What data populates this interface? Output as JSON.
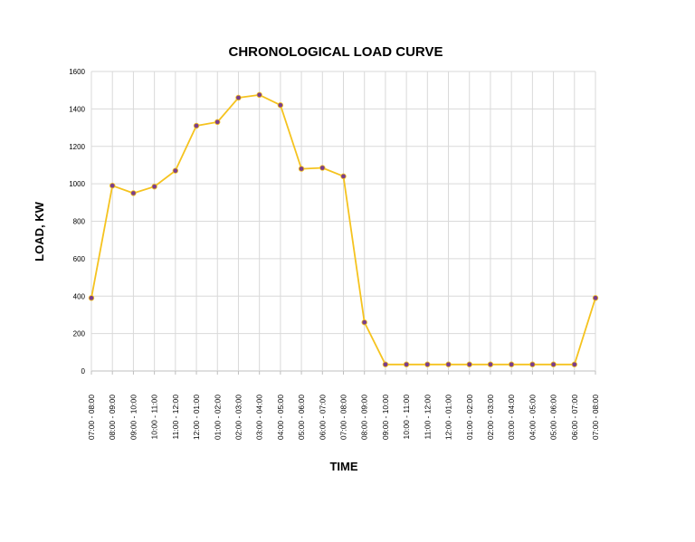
{
  "chart_data": {
    "type": "line",
    "title": "CHRONOLOGICAL LOAD CURVE",
    "xlabel": "TIME",
    "ylabel": "LOAD, KW",
    "ylim": [
      0,
      1600
    ],
    "yticks": [
      "0",
      "200",
      "400",
      "600",
      "800",
      "1000",
      "1200",
      "1400",
      "1600"
    ],
    "grid": true,
    "categories": [
      "07:00 - 08:00",
      "08:00 - 09:00",
      "09:00 - 10:00",
      "10:00 - 11:00",
      "11:00 - 12:00",
      "12:00 - 01:00",
      "01:00 - 02:00",
      "02:00 - 03:00",
      "03:00 - 04:00",
      "04:00 - 05:00",
      "05:00 - 06:00",
      "06:00 - 07:00",
      "07:00 - 08:00",
      "08:00 - 09:00",
      "09:00 - 10:00",
      "10:00 - 11:00",
      "11:00 - 12:00",
      "12:00 - 01:00",
      "01:00 - 02:00",
      "02:00 - 03:00",
      "03:00 - 04:00",
      "04:00 - 05:00",
      "05:00 - 06:00",
      "06:00 - 07:00",
      "07:00 - 08:00"
    ],
    "series": [
      {
        "values": [
          390,
          990,
          950,
          985,
          1070,
          1310,
          1330,
          1460,
          1475,
          1420,
          1080,
          1085,
          1040,
          260,
          35,
          35,
          35,
          35,
          35,
          35,
          35,
          35,
          35,
          35,
          390
        ],
        "line_color": "#F5C31F",
        "marker_color": "#7A3E8C"
      }
    ]
  }
}
